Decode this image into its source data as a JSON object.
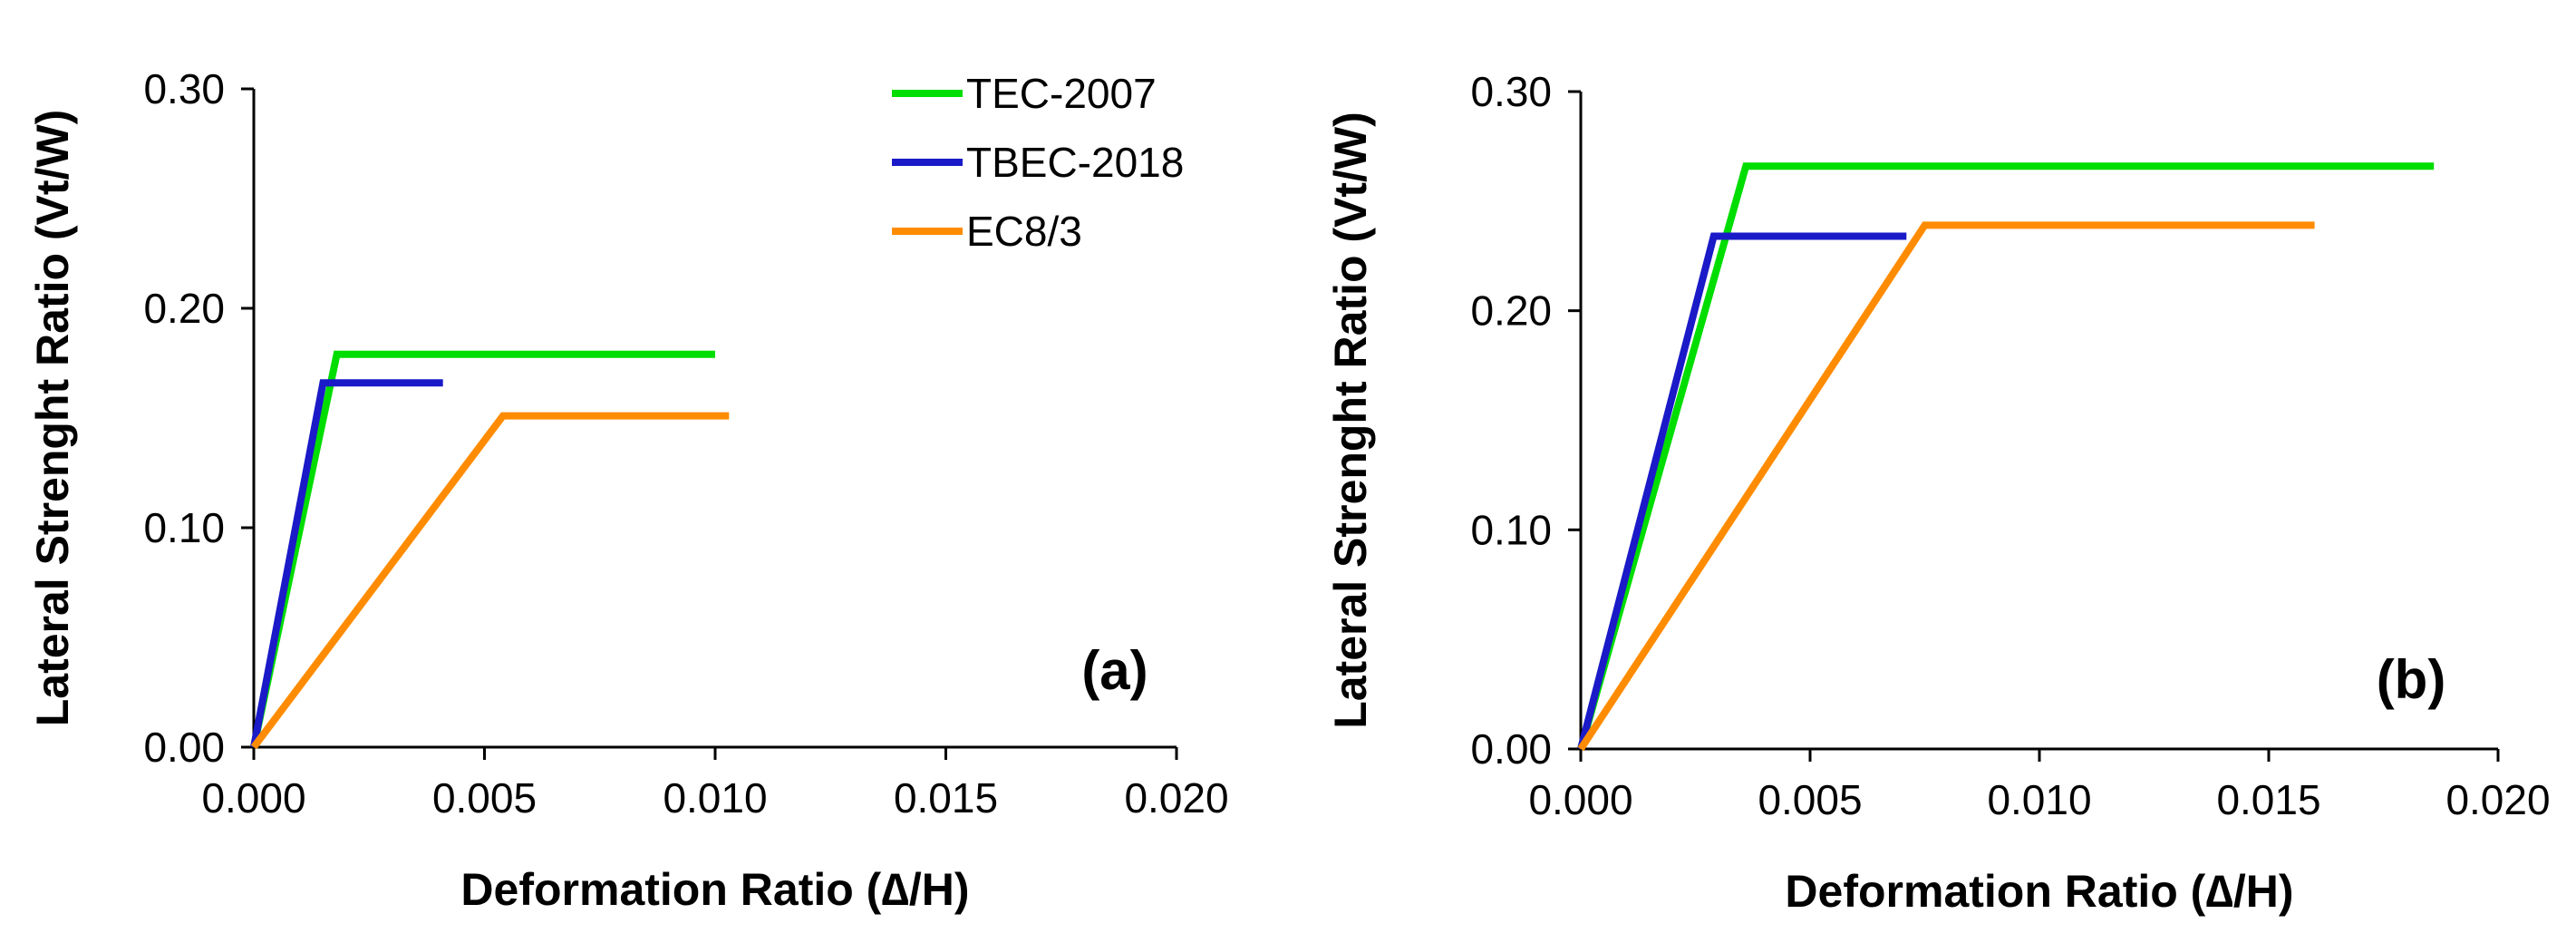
{
  "chart_data": [
    {
      "type": "line",
      "panel_label": "(a)",
      "xlabel": "Deformation Ratio (∆/H)",
      "ylabel": "Lateral Strenght Ratio (Vt/W)",
      "xlim": [
        0,
        0.02
      ],
      "ylim": [
        0,
        0.3
      ],
      "x_ticks": [
        "0.000",
        "0.005",
        "0.010",
        "0.015",
        "0.020"
      ],
      "y_ticks": [
        "0.00",
        "0.10",
        "0.20",
        "0.30"
      ],
      "legend": true,
      "legend_position": "top-right",
      "series": [
        {
          "name": "TEC-2007",
          "color": "#00DD00",
          "points": [
            [
              0,
              0
            ],
            [
              0.0018,
              0.179
            ],
            [
              0.01,
              0.179
            ]
          ]
        },
        {
          "name": "TBEC-2018",
          "color": "#1A1AC8",
          "points": [
            [
              0,
              0
            ],
            [
              0.0015,
              0.166
            ],
            [
              0.0041,
              0.166
            ]
          ]
        },
        {
          "name": "EC8/3",
          "color": "#FF8C00",
          "points": [
            [
              0,
              0
            ],
            [
              0.0054,
              0.151
            ],
            [
              0.0103,
              0.151
            ]
          ]
        }
      ]
    },
    {
      "type": "line",
      "panel_label": "(b)",
      "xlabel": "Deformation Ratio (∆/H)",
      "ylabel": "Lateral Strenght Ratio (Vt/W)",
      "xlim": [
        0,
        0.02
      ],
      "ylim": [
        0,
        0.3
      ],
      "x_ticks": [
        "0.000",
        "0.005",
        "0.010",
        "0.015",
        "0.020"
      ],
      "y_ticks": [
        "0.00",
        "0.10",
        "0.20",
        "0.30"
      ],
      "legend": false,
      "series": [
        {
          "name": "TEC-2007",
          "color": "#00DD00",
          "points": [
            [
              0,
              0
            ],
            [
              0.0036,
              0.266
            ],
            [
              0.0186,
              0.266
            ]
          ]
        },
        {
          "name": "TBEC-2018",
          "color": "#1A1AC8",
          "points": [
            [
              0,
              0
            ],
            [
              0.0029,
              0.234
            ],
            [
              0.0071,
              0.234
            ]
          ]
        },
        {
          "name": "EC8/3",
          "color": "#FF8C00",
          "points": [
            [
              0,
              0
            ],
            [
              0.0075,
              0.239
            ],
            [
              0.016,
              0.239
            ]
          ]
        }
      ]
    }
  ]
}
